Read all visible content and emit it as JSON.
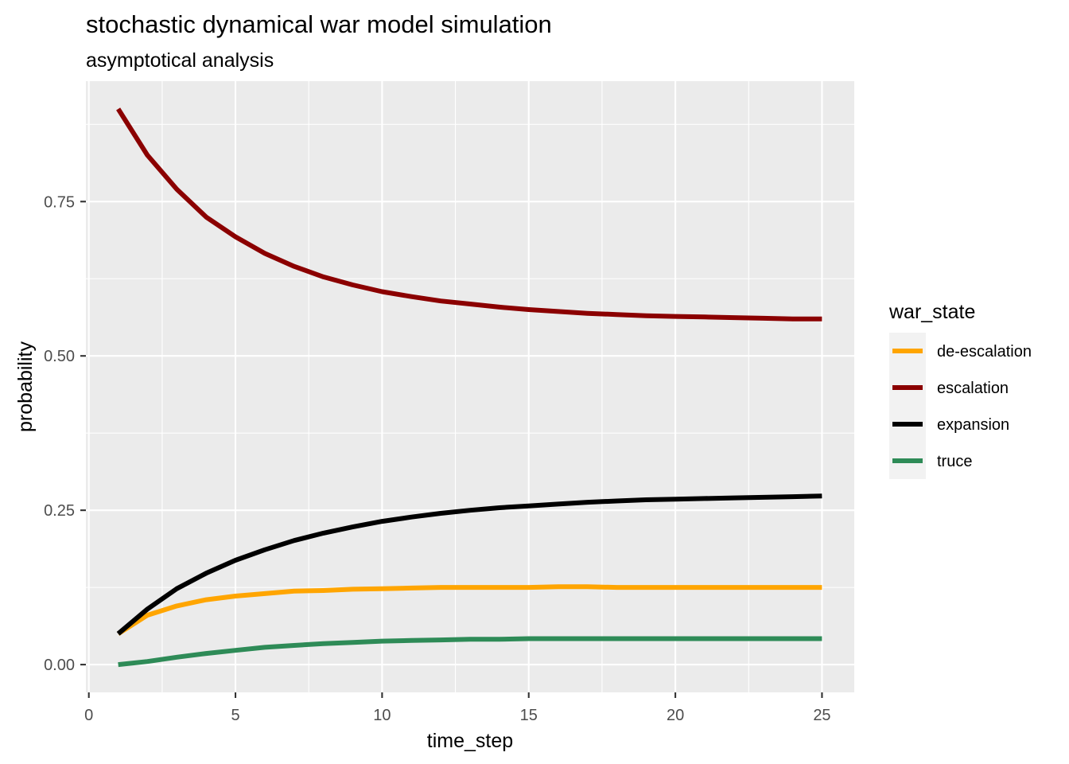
{
  "chart_data": {
    "type": "line",
    "title": "stochastic dynamical war model simulation",
    "subtitle": "asymptotical analysis",
    "xlabel": "time_step",
    "ylabel": "probability",
    "xlim": [
      -0.1,
      26.1
    ],
    "ylim": [
      -0.045,
      0.945
    ],
    "x_ticks": [
      0,
      5,
      10,
      15,
      20,
      25
    ],
    "y_ticks": [
      0.0,
      0.25,
      0.5,
      0.75
    ],
    "x_tick_labels": [
      "0",
      "5",
      "10",
      "15",
      "20",
      "25"
    ],
    "y_tick_labels": [
      "0.00",
      "0.25",
      "0.50",
      "0.75"
    ],
    "grid": true,
    "legend": {
      "title": "war_state",
      "position": "right"
    },
    "x": [
      1,
      2,
      3,
      4,
      5,
      6,
      7,
      8,
      9,
      10,
      11,
      12,
      13,
      14,
      15,
      16,
      17,
      18,
      19,
      20,
      21,
      22,
      23,
      24,
      25
    ],
    "series": [
      {
        "name": "de-escalation",
        "color": "#FFA500",
        "values": [
          0.05,
          0.08,
          0.095,
          0.105,
          0.111,
          0.115,
          0.119,
          0.12,
          0.122,
          0.123,
          0.124,
          0.125,
          0.125,
          0.125,
          0.125,
          0.126,
          0.126,
          0.125,
          0.125,
          0.125,
          0.125,
          0.125,
          0.125,
          0.125,
          0.125
        ]
      },
      {
        "name": "escalation",
        "color": "#8B0000",
        "values": [
          0.9,
          0.825,
          0.77,
          0.725,
          0.693,
          0.666,
          0.645,
          0.628,
          0.615,
          0.604,
          0.596,
          0.589,
          0.584,
          0.579,
          0.575,
          0.572,
          0.569,
          0.567,
          0.565,
          0.564,
          0.563,
          0.562,
          0.561,
          0.56,
          0.56
        ]
      },
      {
        "name": "expansion",
        "color": "#000000",
        "values": [
          0.05,
          0.09,
          0.123,
          0.148,
          0.169,
          0.186,
          0.201,
          0.213,
          0.223,
          0.232,
          0.239,
          0.245,
          0.25,
          0.254,
          0.257,
          0.26,
          0.263,
          0.265,
          0.267,
          0.268,
          0.269,
          0.27,
          0.271,
          0.272,
          0.273
        ]
      },
      {
        "name": "truce",
        "color": "#2E8B57",
        "values": [
          0.0,
          0.005,
          0.012,
          0.018,
          0.023,
          0.028,
          0.031,
          0.034,
          0.036,
          0.038,
          0.039,
          0.04,
          0.041,
          0.041,
          0.042,
          0.042,
          0.042,
          0.042,
          0.042,
          0.042,
          0.042,
          0.042,
          0.042,
          0.042,
          0.042
        ]
      }
    ]
  }
}
